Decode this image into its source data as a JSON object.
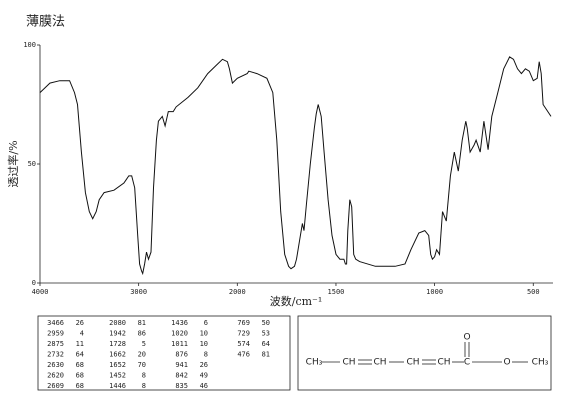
{
  "chart_data": {
    "type": "line",
    "title": "薄膜法",
    "x_label": "波数/cm⁻¹",
    "y_label": "透过率/%",
    "color": "#111111",
    "xlim": [
      4000,
      400
    ],
    "x_scale_change": {
      "at": 2000,
      "factor": 2
    },
    "xticks": [
      4000,
      3000,
      2000,
      1500,
      1000,
      500
    ],
    "ylim": [
      0,
      100
    ],
    "yticks": [
      0,
      50,
      100
    ],
    "x": [
      4000,
      3900,
      3800,
      3700,
      3650,
      3620,
      3580,
      3540,
      3500,
      3466,
      3430,
      3400,
      3350,
      3250,
      3150,
      3100,
      3070,
      3040,
      3010,
      2990,
      2970,
      2959,
      2940,
      2920,
      2900,
      2875,
      2850,
      2820,
      2800,
      2760,
      2732,
      2700,
      2650,
      2620,
      2500,
      2400,
      2300,
      2200,
      2150,
      2100,
      2080,
      2050,
      2000,
      1950,
      1942,
      1900,
      1850,
      1820,
      1800,
      1780,
      1760,
      1740,
      1728,
      1710,
      1700,
      1680,
      1670,
      1662,
      1650,
      1630,
      1610,
      1600,
      1590,
      1575,
      1560,
      1540,
      1520,
      1500,
      1480,
      1460,
      1452,
      1446,
      1440,
      1430,
      1420,
      1410,
      1400,
      1380,
      1300,
      1250,
      1200,
      1150,
      1120,
      1080,
      1050,
      1030,
      1020,
      1011,
      1000,
      990,
      975,
      960,
      941,
      920,
      900,
      880,
      860,
      842,
      835,
      820,
      800,
      790,
      769,
      750,
      729,
      710,
      680,
      650,
      620,
      600,
      580,
      560,
      540,
      520,
      500,
      480,
      470,
      460,
      450,
      410
    ],
    "values": [
      80,
      84,
      85,
      85,
      80,
      75,
      55,
      38,
      30,
      27,
      30,
      35,
      38,
      39,
      42,
      45,
      45,
      40,
      20,
      8,
      5,
      4,
      8,
      13,
      10,
      13,
      40,
      60,
      68,
      70,
      66,
      72,
      72,
      74,
      78,
      82,
      88,
      92,
      94,
      93,
      90,
      84,
      86,
      88,
      89,
      88,
      86,
      80,
      60,
      30,
      12,
      7,
      6,
      7,
      10,
      20,
      25,
      22,
      33,
      50,
      65,
      71,
      75,
      70,
      55,
      35,
      20,
      12,
      10,
      10,
      8,
      8,
      22,
      35,
      32,
      12,
      10,
      9,
      7,
      7,
      7,
      8,
      14,
      21,
      22,
      20,
      12,
      10,
      11,
      14,
      12,
      30,
      26,
      45,
      55,
      47,
      60,
      68,
      65,
      55,
      58,
      60,
      55,
      68,
      56,
      70,
      80,
      90,
      95,
      94,
      90,
      88,
      90,
      89,
      85,
      86,
      93,
      88,
      75,
      70
    ]
  },
  "peaks": [
    [
      [
        "3466",
        "26"
      ],
      [
        "2959",
        "4"
      ],
      [
        "2875",
        "11"
      ],
      [
        "2732",
        "64"
      ],
      [
        "2630",
        "68"
      ],
      [
        "2620",
        "68"
      ],
      [
        "2609",
        "68"
      ]
    ],
    [
      [
        "2080",
        "81"
      ],
      [
        "1942",
        "86"
      ],
      [
        "1728",
        "5"
      ],
      [
        "1662",
        "20"
      ],
      [
        "1652",
        "70"
      ],
      [
        "1452",
        "8"
      ],
      [
        "1446",
        "8"
      ]
    ],
    [
      [
        "1436",
        "6"
      ],
      [
        "1020",
        "10"
      ],
      [
        "1011",
        "10"
      ],
      [
        "876",
        "8"
      ],
      [
        "941",
        "26"
      ],
      [
        "842",
        "49"
      ],
      [
        "835",
        "46"
      ]
    ],
    [
      [
        "769",
        "50"
      ],
      [
        "729",
        "53"
      ],
      [
        "574",
        "64"
      ],
      [
        "476",
        "81"
      ]
    ]
  ],
  "structure": {
    "groups": [
      "CH₃",
      "CH",
      "CH",
      "CH",
      "CH",
      "C",
      "O",
      "CH₃"
    ],
    "carbonyl_o": "O"
  }
}
